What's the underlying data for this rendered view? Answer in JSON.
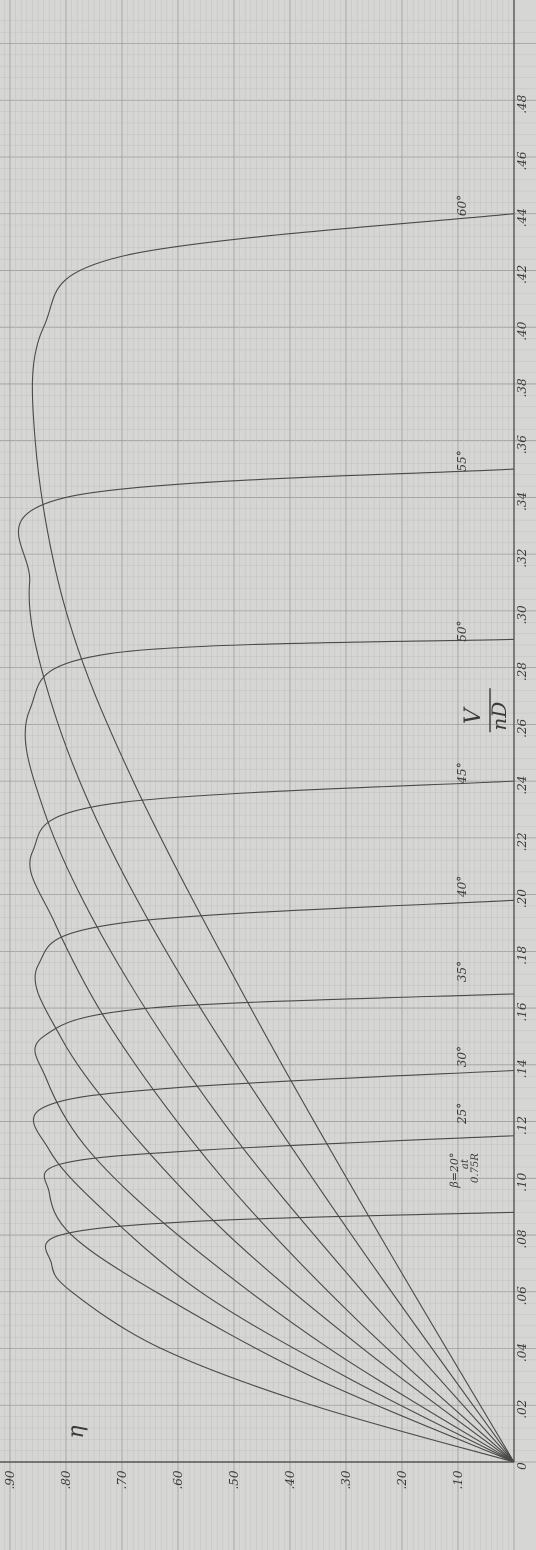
{
  "chart_data": {
    "type": "line",
    "orientation": "rotated-90-ccw",
    "xlabel_top": "V",
    "xlabel_bottom": "nD",
    "ylabel": "η",
    "xlim": [
      0,
      0.48
    ],
    "ylim": [
      0,
      0.9
    ],
    "x_ticks": [
      "0",
      ".02",
      ".04",
      ".06",
      ".08",
      ".10",
      ".12",
      ".14",
      ".16",
      ".18",
      ".20",
      ".22",
      ".24",
      ".26",
      ".28",
      ".30",
      ".32",
      ".34",
      ".36",
      ".38",
      ".40",
      ".42",
      ".44",
      ".46",
      ".48"
    ],
    "y_ticks": [
      ".10",
      ".20",
      ".30",
      ".40",
      ".50",
      ".60",
      ".70",
      ".80",
      ".90"
    ],
    "grid": true,
    "beta_annotation": [
      "β=20°",
      "at",
      "0.75R"
    ],
    "series": [
      {
        "name": "20°",
        "label_x": 0.105,
        "x": [
          0,
          0.02,
          0.04,
          0.06,
          0.07,
          0.08,
          0.085,
          0.088
        ],
        "y": [
          0,
          0.36,
          0.63,
          0.79,
          0.826,
          0.81,
          0.55,
          0
        ]
      },
      {
        "name": "25°",
        "label_x": 0.125,
        "x": [
          0,
          0.03,
          0.06,
          0.08,
          0.095,
          0.105,
          0.11,
          0.115
        ],
        "y": [
          0,
          0.36,
          0.64,
          0.79,
          0.83,
          0.81,
          0.55,
          0
        ]
      },
      {
        "name": "30°",
        "label_x": 0.145,
        "x": [
          0,
          0.03,
          0.06,
          0.09,
          0.11,
          0.125,
          0.132,
          0.138
        ],
        "y": [
          0,
          0.3,
          0.56,
          0.74,
          0.83,
          0.84,
          0.6,
          0
        ]
      },
      {
        "name": "35°",
        "label_x": 0.175,
        "x": [
          0,
          0.04,
          0.08,
          0.11,
          0.135,
          0.15,
          0.16,
          0.165
        ],
        "y": [
          0,
          0.33,
          0.6,
          0.76,
          0.835,
          0.84,
          0.65,
          0
        ]
      },
      {
        "name": "40°",
        "label_x": 0.205,
        "x": [
          0,
          0.04,
          0.08,
          0.12,
          0.15,
          0.175,
          0.19,
          0.198
        ],
        "y": [
          0,
          0.27,
          0.51,
          0.7,
          0.81,
          0.85,
          0.7,
          0
        ]
      },
      {
        "name": "45°",
        "label_x": 0.245,
        "x": [
          0,
          0.05,
          0.1,
          0.15,
          0.19,
          0.215,
          0.232,
          0.24
        ],
        "y": [
          0,
          0.28,
          0.52,
          0.71,
          0.82,
          0.86,
          0.72,
          0
        ]
      },
      {
        "name": "50°",
        "label_x": 0.295,
        "x": [
          0,
          0.06,
          0.12,
          0.18,
          0.23,
          0.265,
          0.285,
          0.29
        ],
        "y": [
          0,
          0.27,
          0.52,
          0.72,
          0.84,
          0.865,
          0.72,
          0
        ]
      },
      {
        "name": "55°",
        "label_x": 0.355,
        "x": [
          0,
          0.08,
          0.16,
          0.22,
          0.27,
          0.31,
          0.34,
          0.35
        ],
        "y": [
          0,
          0.29,
          0.56,
          0.73,
          0.83,
          0.865,
          0.8,
          0
        ]
      },
      {
        "name": "60°",
        "label_x": 0.445,
        "x": [
          0,
          0.08,
          0.16,
          0.24,
          0.3,
          0.36,
          0.4,
          0.425,
          0.44
        ],
        "y": [
          0,
          0.24,
          0.47,
          0.68,
          0.8,
          0.855,
          0.84,
          0.7,
          0
        ]
      }
    ]
  }
}
